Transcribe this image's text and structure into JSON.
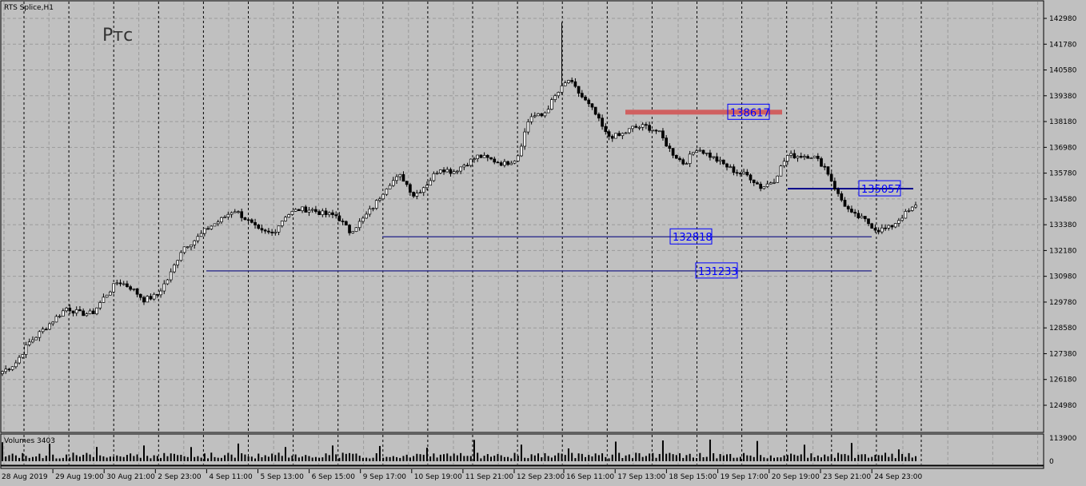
{
  "window": {
    "symbol_label": "RTS Splice,H1",
    "chart_caption": "Ртс"
  },
  "volume_pane": {
    "label": "Volumes 3403",
    "max_tick": "113900",
    "zero_tick": "0"
  },
  "colors": {
    "background": "#c0c0c0",
    "candle_up": "#ffffff",
    "candle_down": "#000000",
    "level_line": "#1c1ca0",
    "level_label": "#0000ff",
    "resistance_band": "#d06060"
  },
  "chart_data": {
    "type": "candlestick",
    "title": "RTS Splice,H1",
    "y_ticks": [
      "142980",
      "141780",
      "140580",
      "139380",
      "138180",
      "136980",
      "135780",
      "134580",
      "133380",
      "132180",
      "130980",
      "129780",
      "128580",
      "127380",
      "126180",
      "124980"
    ],
    "ylim": [
      124980,
      142980
    ],
    "x_ticks": [
      "28 Aug 2019",
      "29 Aug 19:00",
      "30 Aug 21:00",
      "2 Sep 23:00",
      "4 Sep 11:00",
      "5 Sep 13:00",
      "6 Sep 15:00",
      "9 Sep 17:00",
      "10 Sep 19:00",
      "11 Sep 21:00",
      "12 Sep 23:00",
      "16 Sep 11:00",
      "17 Sep 13:00",
      "18 Sep 15:00",
      "19 Sep 17:00",
      "20 Sep 19:00",
      "23 Sep 21:00",
      "24 Sep 23:00"
    ],
    "grid": true,
    "approx_close_path": [
      126550,
      126920,
      127850,
      128400,
      128960,
      129520,
      129250,
      129250,
      130080,
      130750,
      130450,
      129890,
      130080,
      130990,
      132310,
      132680,
      133240,
      133610,
      134090,
      133610,
      133050,
      132980,
      133800,
      134090,
      134090,
      133870,
      133800,
      133050,
      133610,
      134350,
      135280,
      135660,
      134730,
      135280,
      136030,
      135840,
      136210,
      136580,
      136400,
      136210,
      136470,
      138440,
      138440,
      139370,
      140120,
      139370,
      138630,
      137510,
      137510,
      137890,
      137960,
      137700,
      136770,
      136210,
      136960,
      136590,
      136210,
      135840,
      135660,
      135100,
      135470,
      136590,
      136590,
      136590,
      136030,
      134730,
      133870,
      133610,
      133130,
      133240,
      133800,
      134240
    ],
    "spike_high": 142800,
    "levels": [
      {
        "value": 138617,
        "label": "138617",
        "style": "band"
      },
      {
        "value": 135057,
        "label": "135057",
        "style": "line"
      },
      {
        "value": 132818,
        "label": "132818",
        "style": "line"
      },
      {
        "value": 131233,
        "label": "131233",
        "style": "line"
      }
    ]
  }
}
